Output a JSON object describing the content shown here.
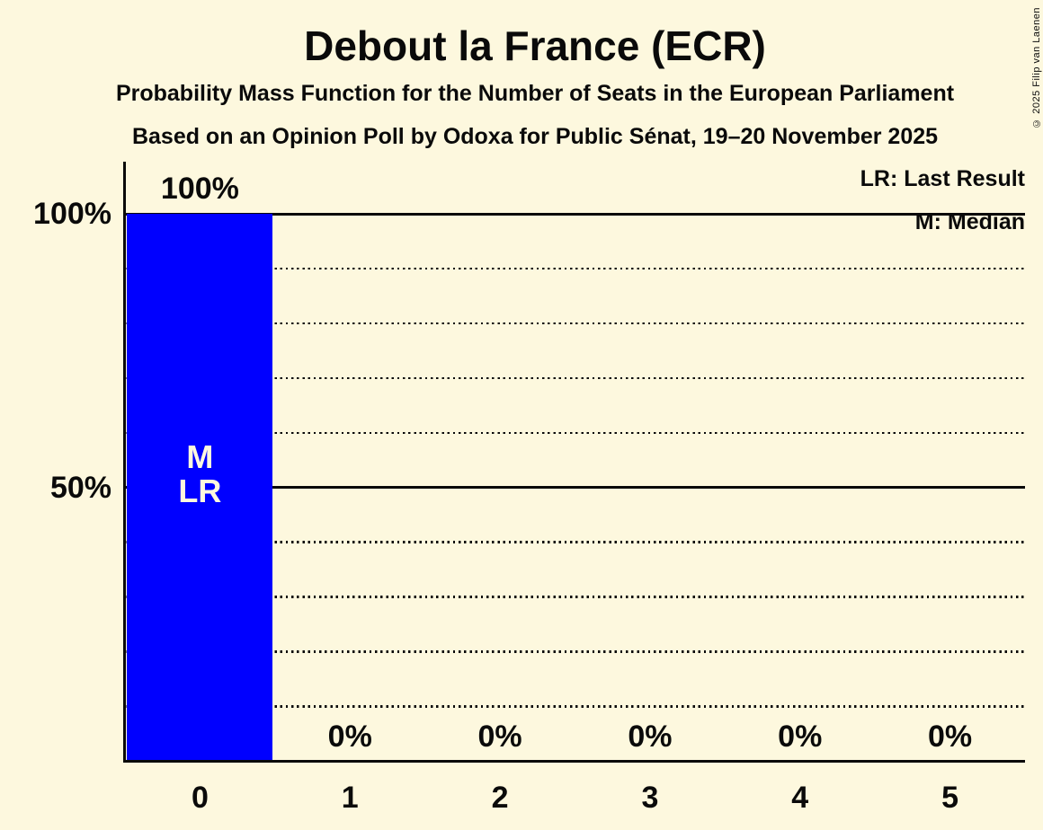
{
  "chart_data": {
    "type": "bar",
    "title": "Debout la France (ECR)",
    "subtitle1": "Probability Mass Function for the Number of Seats in the European Parliament",
    "subtitle2": "Based on an Opinion Poll by Odoxa for Public Sénat, 19–20 November 2025",
    "xlabel": "",
    "ylabel": "",
    "categories": [
      "0",
      "1",
      "2",
      "3",
      "4",
      "5"
    ],
    "values": [
      100,
      0,
      0,
      0,
      0,
      0
    ],
    "value_labels": [
      "100%",
      "0%",
      "0%",
      "0%",
      "0%",
      "0%"
    ],
    "ylim": [
      0,
      100
    ],
    "y_ticks": [
      {
        "label": "100%",
        "percent": 100
      },
      {
        "label": "50%",
        "percent": 50
      }
    ],
    "gridlines": [
      {
        "percent": 100,
        "style": "solid"
      },
      {
        "percent": 90,
        "style": "dotted"
      },
      {
        "percent": 80,
        "style": "dotted"
      },
      {
        "percent": 70,
        "style": "dotted"
      },
      {
        "percent": 60,
        "style": "dotted"
      },
      {
        "percent": 50,
        "style": "solid"
      },
      {
        "percent": 40,
        "style": "dotted"
      },
      {
        "percent": 30,
        "style": "dotted"
      },
      {
        "percent": 20,
        "style": "dotted"
      },
      {
        "percent": 10,
        "style": "dotted"
      }
    ],
    "annotations": [
      {
        "category_index": 0,
        "lines": [
          "M",
          "LR"
        ]
      }
    ],
    "legend": [
      "LR: Last Result",
      "M: Median"
    ],
    "copyright": "© 2025 Filip van Laenen",
    "colors": {
      "background": "#FDF8DE",
      "bar": "#0000FF",
      "text": "#0A0A0A",
      "annotation_text": "#FDF8DE"
    }
  }
}
